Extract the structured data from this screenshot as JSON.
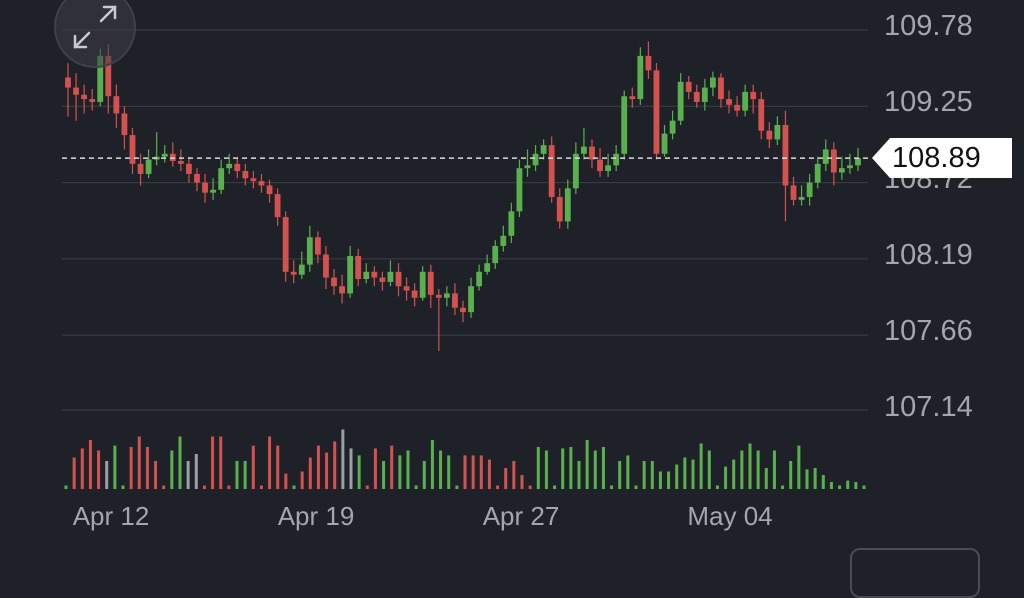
{
  "chart_data": {
    "type": "candlestick",
    "y_ticks": [
      "109.78",
      "109.25",
      "108.72",
      "108.19",
      "107.66",
      "107.14"
    ],
    "x_ticks": [
      "Apr 12",
      "Apr 19",
      "Apr 27",
      "May 04"
    ],
    "ylim": [
      107.14,
      109.78
    ],
    "current_price": "108.89",
    "current_price_value": 108.89,
    "colors": {
      "up": "#5ab04f",
      "down": "#d3524f",
      "neutral": "#9aa0a6",
      "grid": "#3d3f47",
      "background": "#1f2128"
    },
    "candles": [
      [
        109.45,
        109.38,
        109.55,
        109.18
      ],
      [
        109.38,
        109.33,
        109.48,
        109.15
      ],
      [
        109.33,
        109.3,
        109.4,
        109.2
      ],
      [
        109.3,
        109.28,
        109.37,
        109.22
      ],
      [
        109.28,
        109.6,
        109.65,
        109.25
      ],
      [
        109.6,
        109.32,
        109.68,
        109.2
      ],
      [
        109.32,
        109.2,
        109.4,
        109.1
      ],
      [
        109.2,
        109.05,
        109.25,
        108.95
      ],
      [
        109.05,
        108.85,
        109.1,
        108.78
      ],
      [
        108.85,
        108.78,
        108.92,
        108.7
      ],
      [
        108.78,
        108.88,
        108.95,
        108.75
      ],
      [
        108.88,
        108.9,
        109.07,
        108.84
      ],
      [
        108.9,
        108.92,
        108.98,
        108.86
      ],
      [
        108.92,
        108.87,
        109.0,
        108.83
      ],
      [
        108.87,
        108.85,
        108.95,
        108.8
      ],
      [
        108.85,
        108.78,
        108.9,
        108.72
      ],
      [
        108.78,
        108.72,
        108.82,
        108.66
      ],
      [
        108.72,
        108.65,
        108.78,
        108.58
      ],
      [
        108.65,
        108.67,
        108.75,
        108.6
      ],
      [
        108.67,
        108.82,
        108.88,
        108.64
      ],
      [
        108.82,
        108.85,
        108.92,
        108.78
      ],
      [
        108.85,
        108.8,
        108.9,
        108.75
      ],
      [
        108.8,
        108.75,
        108.85,
        108.7
      ],
      [
        108.75,
        108.73,
        108.8,
        108.68
      ],
      [
        108.73,
        108.7,
        108.78,
        108.65
      ],
      [
        108.7,
        108.64,
        108.74,
        108.58
      ],
      [
        108.64,
        108.48,
        108.68,
        108.42
      ],
      [
        108.48,
        108.1,
        108.52,
        108.03
      ],
      [
        108.1,
        108.08,
        108.18,
        108.02
      ],
      [
        108.08,
        108.15,
        108.24,
        108.05
      ],
      [
        108.15,
        108.34,
        108.42,
        108.1
      ],
      [
        108.34,
        108.22,
        108.38,
        108.16
      ],
      [
        108.22,
        108.06,
        108.28,
        107.98
      ],
      [
        108.06,
        108.0,
        108.12,
        107.94
      ],
      [
        108.0,
        107.95,
        108.08,
        107.88
      ],
      [
        107.95,
        108.21,
        108.28,
        107.92
      ],
      [
        108.21,
        108.05,
        108.26,
        108.0
      ],
      [
        108.05,
        108.1,
        108.16,
        108.02
      ],
      [
        108.1,
        108.06,
        108.14,
        108.0
      ],
      [
        108.06,
        108.03,
        108.1,
        107.97
      ],
      [
        108.03,
        108.1,
        108.18,
        108.0
      ],
      [
        108.1,
        108.0,
        108.16,
        107.93
      ],
      [
        108.0,
        107.97,
        108.06,
        107.9
      ],
      [
        107.97,
        107.92,
        108.02,
        107.86
      ],
      [
        107.92,
        108.1,
        108.14,
        107.9
      ],
      [
        108.1,
        107.94,
        108.15,
        107.85
      ],
      [
        107.94,
        107.92,
        107.98,
        107.55
      ],
      [
        107.92,
        107.95,
        108.0,
        107.86
      ],
      [
        107.95,
        107.85,
        108.02,
        107.8
      ],
      [
        107.85,
        107.82,
        107.9,
        107.75
      ],
      [
        107.82,
        108.0,
        108.06,
        107.78
      ],
      [
        108.0,
        108.1,
        108.15,
        107.97
      ],
      [
        108.1,
        108.16,
        108.22,
        108.08
      ],
      [
        108.16,
        108.28,
        108.32,
        108.12
      ],
      [
        108.28,
        108.35,
        108.42,
        108.24
      ],
      [
        108.35,
        108.52,
        108.58,
        108.3
      ],
      [
        108.52,
        108.82,
        108.88,
        108.48
      ],
      [
        108.82,
        108.84,
        108.95,
        108.76
      ],
      [
        108.84,
        108.92,
        108.98,
        108.8
      ],
      [
        108.92,
        108.98,
        109.02,
        108.88
      ],
      [
        108.98,
        108.62,
        109.04,
        108.58
      ],
      [
        108.62,
        108.45,
        108.68,
        108.4
      ],
      [
        108.45,
        108.68,
        108.74,
        108.4
      ],
      [
        108.68,
        108.92,
        109.0,
        108.64
      ],
      [
        108.92,
        108.97,
        109.1,
        108.88
      ],
      [
        108.97,
        108.88,
        109.02,
        108.82
      ],
      [
        108.88,
        108.8,
        108.96,
        108.76
      ],
      [
        108.8,
        108.84,
        108.92,
        108.76
      ],
      [
        108.84,
        108.92,
        108.98,
        108.8
      ],
      [
        108.92,
        109.32,
        109.36,
        108.88
      ],
      [
        109.32,
        109.3,
        109.38,
        109.24
      ],
      [
        109.3,
        109.6,
        109.66,
        109.26
      ],
      [
        109.6,
        109.5,
        109.7,
        109.44
      ],
      [
        109.5,
        108.92,
        109.55,
        108.88
      ],
      [
        108.92,
        109.06,
        109.12,
        108.9
      ],
      [
        109.06,
        109.15,
        109.22,
        109.02
      ],
      [
        109.15,
        109.42,
        109.48,
        109.12
      ],
      [
        109.42,
        109.35,
        109.46,
        109.3
      ],
      [
        109.35,
        109.28,
        109.4,
        109.24
      ],
      [
        109.28,
        109.38,
        109.44,
        109.22
      ],
      [
        109.38,
        109.45,
        109.49,
        109.32
      ],
      [
        109.45,
        109.3,
        109.48,
        109.24
      ],
      [
        109.3,
        109.26,
        109.36,
        109.2
      ],
      [
        109.26,
        109.22,
        109.32,
        109.18
      ],
      [
        109.22,
        109.35,
        109.4,
        109.18
      ],
      [
        109.35,
        109.3,
        109.4,
        109.2
      ],
      [
        109.3,
        109.08,
        109.35,
        109.02
      ],
      [
        109.08,
        109.02,
        109.14,
        108.96
      ],
      [
        109.02,
        109.12,
        109.18,
        108.98
      ],
      [
        109.12,
        108.7,
        109.22,
        108.45
      ],
      [
        108.7,
        108.6,
        108.76,
        108.56
      ],
      [
        108.6,
        108.62,
        108.7,
        108.56
      ],
      [
        108.62,
        108.72,
        108.78,
        108.56
      ],
      [
        108.72,
        108.85,
        108.9,
        108.68
      ],
      [
        108.85,
        108.95,
        109.02,
        108.8
      ],
      [
        108.95,
        108.79,
        109.0,
        108.7
      ],
      [
        108.79,
        108.82,
        108.9,
        108.74
      ],
      [
        108.82,
        108.84,
        108.92,
        108.78
      ],
      [
        108.84,
        108.89,
        108.96,
        108.8
      ]
    ],
    "volumes": [
      {
        "v": 0.05,
        "c": "up"
      },
      {
        "v": 0.45,
        "c": "down"
      },
      {
        "v": 0.58,
        "c": "down"
      },
      {
        "v": 0.7,
        "c": "down"
      },
      {
        "v": 0.55,
        "c": "down"
      },
      {
        "v": 0.4,
        "c": "neutral"
      },
      {
        "v": 0.62,
        "c": "up"
      },
      {
        "v": 0.05,
        "c": "up"
      },
      {
        "v": 0.6,
        "c": "down"
      },
      {
        "v": 0.75,
        "c": "down"
      },
      {
        "v": 0.6,
        "c": "down"
      },
      {
        "v": 0.4,
        "c": "down"
      },
      {
        "v": 0.05,
        "c": "down"
      },
      {
        "v": 0.55,
        "c": "up"
      },
      {
        "v": 0.75,
        "c": "up"
      },
      {
        "v": 0.4,
        "c": "neutral"
      },
      {
        "v": 0.5,
        "c": "neutral"
      },
      {
        "v": 0.05,
        "c": "down"
      },
      {
        "v": 0.75,
        "c": "down"
      },
      {
        "v": 0.75,
        "c": "down"
      },
      {
        "v": 0.05,
        "c": "down"
      },
      {
        "v": 0.4,
        "c": "up"
      },
      {
        "v": 0.4,
        "c": "up"
      },
      {
        "v": 0.62,
        "c": "down"
      },
      {
        "v": 0.05,
        "c": "down"
      },
      {
        "v": 0.75,
        "c": "down"
      },
      {
        "v": 0.62,
        "c": "down"
      },
      {
        "v": 0.22,
        "c": "down"
      },
      {
        "v": 0.05,
        "c": "up"
      },
      {
        "v": 0.25,
        "c": "down"
      },
      {
        "v": 0.45,
        "c": "down"
      },
      {
        "v": 0.62,
        "c": "down"
      },
      {
        "v": 0.52,
        "c": "down"
      },
      {
        "v": 0.68,
        "c": "down"
      },
      {
        "v": 0.85,
        "c": "neutral"
      },
      {
        "v": 0.58,
        "c": "neutral"
      },
      {
        "v": 0.48,
        "c": "up"
      },
      {
        "v": 0.05,
        "c": "down"
      },
      {
        "v": 0.58,
        "c": "down"
      },
      {
        "v": 0.4,
        "c": "up"
      },
      {
        "v": 0.62,
        "c": "down"
      },
      {
        "v": 0.48,
        "c": "up"
      },
      {
        "v": 0.55,
        "c": "up"
      },
      {
        "v": 0.05,
        "c": "up"
      },
      {
        "v": 0.4,
        "c": "up"
      },
      {
        "v": 0.7,
        "c": "up"
      },
      {
        "v": 0.55,
        "c": "up"
      },
      {
        "v": 0.48,
        "c": "up"
      },
      {
        "v": 0.05,
        "c": "up"
      },
      {
        "v": 0.48,
        "c": "down"
      },
      {
        "v": 0.48,
        "c": "down"
      },
      {
        "v": 0.48,
        "c": "down"
      },
      {
        "v": 0.42,
        "c": "down"
      },
      {
        "v": 0.05,
        "c": "down"
      },
      {
        "v": 0.3,
        "c": "down"
      },
      {
        "v": 0.4,
        "c": "down"
      },
      {
        "v": 0.2,
        "c": "down"
      },
      {
        "v": 0.05,
        "c": "down"
      },
      {
        "v": 0.6,
        "c": "up"
      },
      {
        "v": 0.55,
        "c": "up"
      },
      {
        "v": 0.05,
        "c": "up"
      },
      {
        "v": 0.58,
        "c": "up"
      },
      {
        "v": 0.6,
        "c": "up"
      },
      {
        "v": 0.4,
        "c": "up"
      },
      {
        "v": 0.7,
        "c": "up"
      },
      {
        "v": 0.55,
        "c": "up"
      },
      {
        "v": 0.6,
        "c": "up"
      },
      {
        "v": 0.05,
        "c": "up"
      },
      {
        "v": 0.4,
        "c": "up"
      },
      {
        "v": 0.48,
        "c": "up"
      },
      {
        "v": 0.05,
        "c": "up"
      },
      {
        "v": 0.4,
        "c": "up"
      },
      {
        "v": 0.4,
        "c": "up"
      },
      {
        "v": 0.25,
        "c": "up"
      },
      {
        "v": 0.25,
        "c": "up"
      },
      {
        "v": 0.35,
        "c": "up"
      },
      {
        "v": 0.45,
        "c": "up"
      },
      {
        "v": 0.42,
        "c": "up"
      },
      {
        "v": 0.65,
        "c": "up"
      },
      {
        "v": 0.55,
        "c": "up"
      },
      {
        "v": 0.05,
        "c": "up"
      },
      {
        "v": 0.32,
        "c": "up"
      },
      {
        "v": 0.42,
        "c": "up"
      },
      {
        "v": 0.55,
        "c": "up"
      },
      {
        "v": 0.65,
        "c": "up"
      },
      {
        "v": 0.55,
        "c": "up"
      },
      {
        "v": 0.3,
        "c": "up"
      },
      {
        "v": 0.55,
        "c": "up"
      },
      {
        "v": 0.05,
        "c": "up"
      },
      {
        "v": 0.4,
        "c": "up"
      },
      {
        "v": 0.62,
        "c": "up"
      },
      {
        "v": 0.28,
        "c": "up"
      },
      {
        "v": 0.3,
        "c": "up"
      },
      {
        "v": 0.2,
        "c": "up"
      },
      {
        "v": 0.1,
        "c": "up"
      },
      {
        "v": 0.05,
        "c": "up"
      },
      {
        "v": 0.12,
        "c": "up"
      },
      {
        "v": 0.1,
        "c": "up"
      },
      {
        "v": 0.05,
        "c": "up"
      }
    ]
  }
}
